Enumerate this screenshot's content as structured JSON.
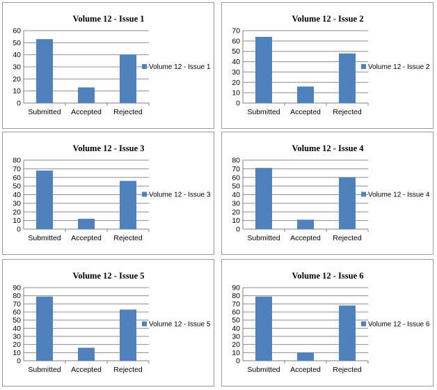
{
  "colors": {
    "bar": "#4f81bd",
    "grid": "#8c8c8c",
    "axis": "#7f7f7f",
    "text": "#000000"
  },
  "chart_data": [
    {
      "type": "bar",
      "title": "Volume 12 - Issue  1",
      "categories": [
        "Submitted",
        "Accepted",
        "Rejected"
      ],
      "series": [
        {
          "name": "Volume 12 - Issue 1",
          "values": [
            53,
            13,
            40
          ]
        }
      ],
      "ylim": [
        0,
        60
      ],
      "ytick_step": 10,
      "yticks": [
        "0",
        "10",
        "20",
        "30",
        "40",
        "50",
        "60"
      ],
      "grid": true,
      "legend": "right"
    },
    {
      "type": "bar",
      "title": "Volume 12 - Issue  2",
      "categories": [
        "Submitted",
        "Accepted",
        "Rejected"
      ],
      "series": [
        {
          "name": "Volume 12 - Issue 2",
          "values": [
            64,
            16,
            48
          ]
        }
      ],
      "ylim": [
        0,
        70
      ],
      "ytick_step": 10,
      "yticks": [
        "0",
        "10",
        "20",
        "30",
        "40",
        "50",
        "60",
        "70"
      ],
      "grid": true,
      "legend": "right"
    },
    {
      "type": "bar",
      "title": "Volume 12 - Issue  3",
      "categories": [
        "Submitted",
        "Accepted",
        "Rejected"
      ],
      "series": [
        {
          "name": "Volume 12 - Issue 3",
          "values": [
            68,
            12,
            56
          ]
        }
      ],
      "ylim": [
        0,
        80
      ],
      "ytick_step": 10,
      "yticks": [
        "0",
        "10",
        "20",
        "30",
        "40",
        "50",
        "60",
        "70",
        "80"
      ],
      "grid": true,
      "legend": "right"
    },
    {
      "type": "bar",
      "title": "Volume 12 - Issue  4",
      "categories": [
        "Submitted",
        "Accepted",
        "Rejected"
      ],
      "series": [
        {
          "name": "Volume 12 - Issue 4",
          "values": [
            71,
            11,
            60
          ]
        }
      ],
      "ylim": [
        0,
        80
      ],
      "ytick_step": 10,
      "yticks": [
        "0",
        "10",
        "20",
        "30",
        "40",
        "50",
        "60",
        "70",
        "80"
      ],
      "grid": true,
      "legend": "right"
    },
    {
      "type": "bar",
      "title": "Volume 12 - Issue  5",
      "categories": [
        "Submitted",
        "Accepted",
        "Rejected"
      ],
      "series": [
        {
          "name": "Volume 12 - Issue 5",
          "values": [
            79,
            16,
            63
          ]
        }
      ],
      "ylim": [
        0,
        90
      ],
      "ytick_step": 10,
      "yticks": [
        "0",
        "10",
        "20",
        "30",
        "40",
        "50",
        "60",
        "70",
        "80",
        "90"
      ],
      "grid": true,
      "legend": "right"
    },
    {
      "type": "bar",
      "title": "Volume 12 - Issue  6",
      "categories": [
        "Submitted",
        "Accepted",
        "Rejected"
      ],
      "series": [
        {
          "name": "Volume 12 - Issue 6",
          "values": [
            79,
            10,
            68
          ]
        }
      ],
      "ylim": [
        0,
        90
      ],
      "ytick_step": 10,
      "yticks": [
        "0",
        "10",
        "20",
        "30",
        "40",
        "50",
        "60",
        "70",
        "80",
        "90"
      ],
      "grid": true,
      "legend": "right"
    }
  ]
}
